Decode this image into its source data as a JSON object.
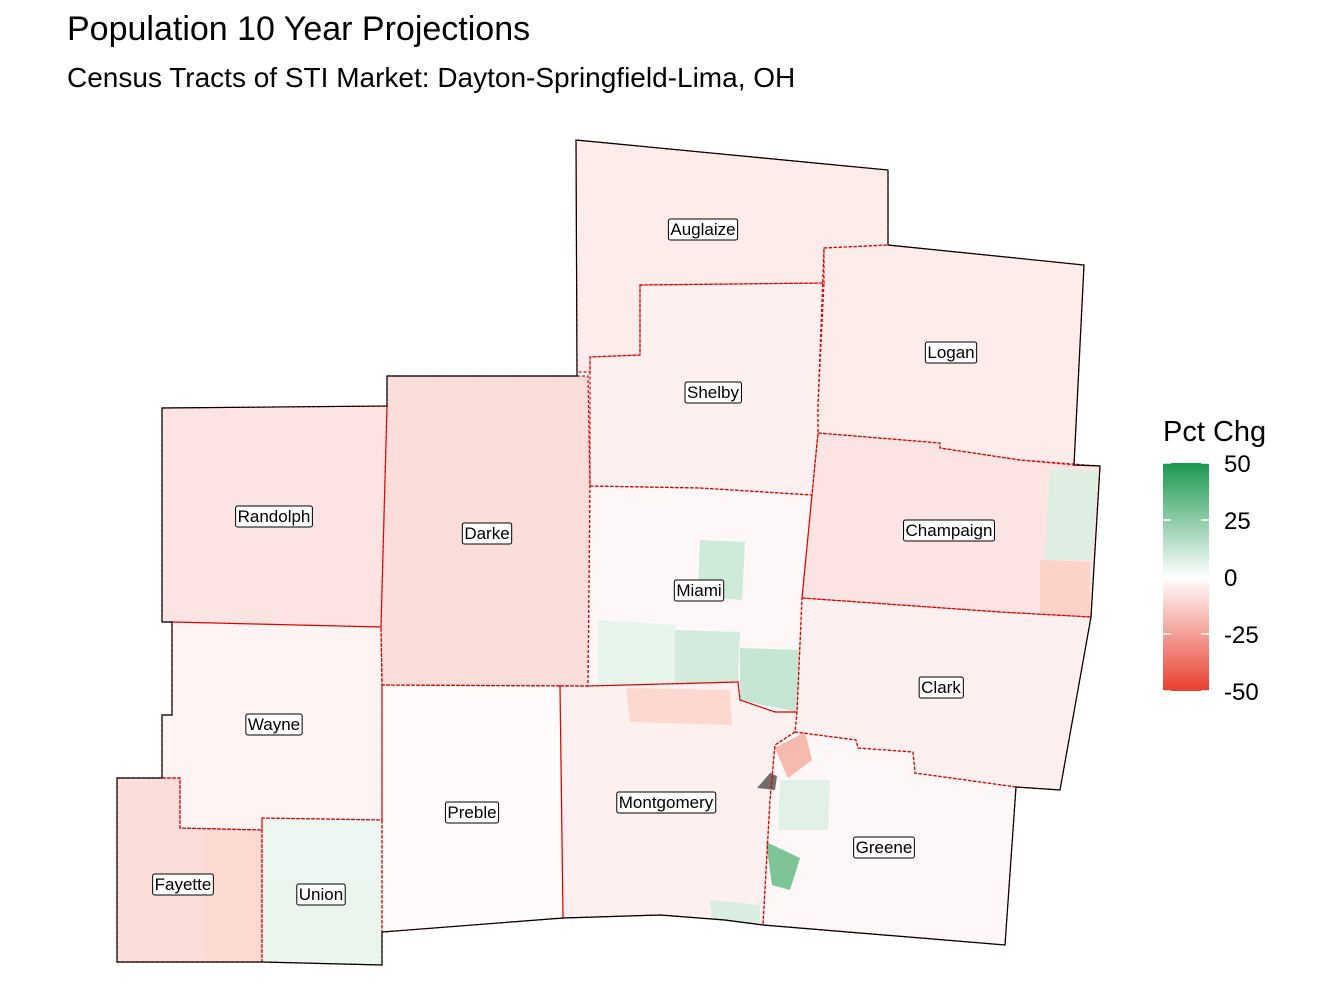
{
  "title": "Population 10 Year Projections",
  "subtitle": "Census Tracts of STI Market: Dayton-Springfield-Lima, OH",
  "legend": {
    "title": "Pct Chg",
    "ticks": [
      {
        "value": 50,
        "label": "50"
      },
      {
        "value": 25,
        "label": "25"
      },
      {
        "value": 0,
        "label": "0"
      },
      {
        "value": -25,
        "label": "-25"
      },
      {
        "value": -50,
        "label": "-50"
      }
    ],
    "range": [
      -50,
      50
    ],
    "colors": {
      "high": "#1a9850",
      "mid": "#ffffff",
      "low": "#e8402f"
    }
  },
  "map": {
    "market_border_color": "#000000",
    "county_border_color": "#e00000",
    "missing_color": "#6e6e6e",
    "counties": [
      {
        "name": "Auglaize",
        "pct_chg": -5
      },
      {
        "name": "Logan",
        "pct_chg": -5
      },
      {
        "name": "Shelby",
        "pct_chg": -4
      },
      {
        "name": "Randolph",
        "pct_chg": -7
      },
      {
        "name": "Darke",
        "pct_chg": -9
      },
      {
        "name": "Champaign",
        "pct_chg": -7
      },
      {
        "name": "Miami",
        "pct_chg": -2
      },
      {
        "name": "Clark",
        "pct_chg": -4
      },
      {
        "name": "Wayne",
        "pct_chg": -3
      },
      {
        "name": "Preble",
        "pct_chg": -1
      },
      {
        "name": "Montgomery",
        "pct_chg": -4
      },
      {
        "name": "Greene",
        "pct_chg": -2
      },
      {
        "name": "Fayette",
        "pct_chg": -9
      },
      {
        "name": "Union",
        "pct_chg": 4
      }
    ]
  }
}
